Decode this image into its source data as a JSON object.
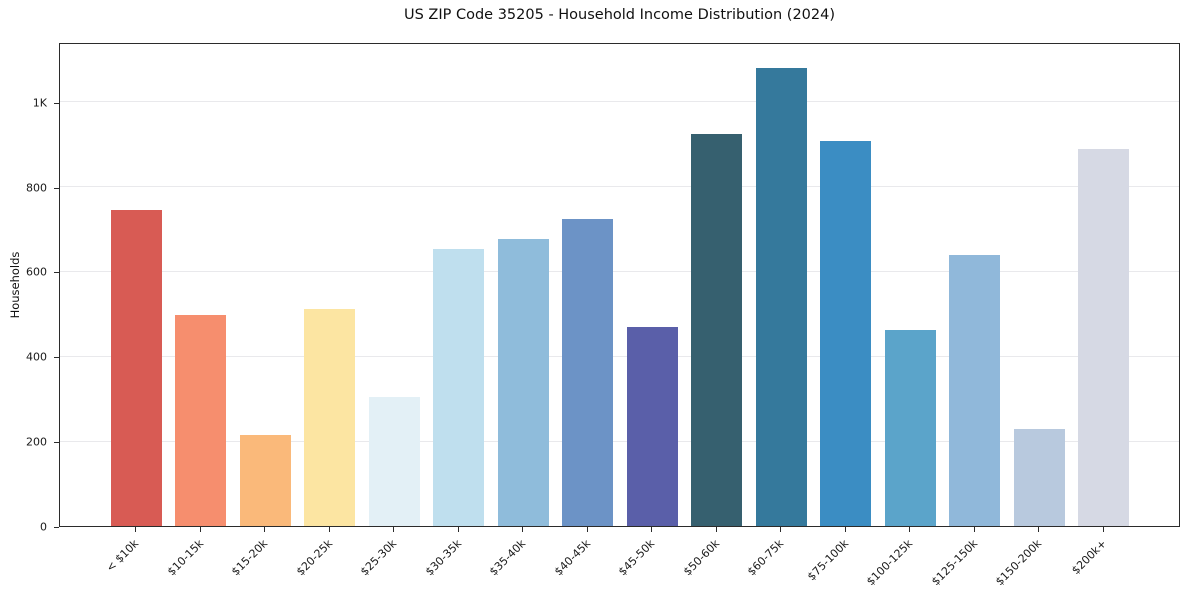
{
  "chart_data": {
    "type": "bar",
    "title": "US ZIP Code 35205 - Household Income Distribution (2024)",
    "xlabel": "",
    "ylabel": "Households",
    "categories": [
      "< $10k",
      "$10-15k",
      "$15-20k",
      "$20-25k",
      "$25-30k",
      "$30-35k",
      "$35-40k",
      "$40-45k",
      "$45-50k",
      "$50-60k",
      "$60-75k",
      "$75-100k",
      "$100-125k",
      "$125-150k",
      "$150-200k",
      "$200k+"
    ],
    "values": [
      746,
      497,
      214,
      511,
      304,
      654,
      676,
      723,
      469,
      923,
      1080,
      908,
      462,
      640,
      229,
      888
    ],
    "bar_colors": [
      "#d85b54",
      "#f68e6e",
      "#fab97a",
      "#fce5a2",
      "#e3f0f6",
      "#bfdfee",
      "#8fbcdb",
      "#6c93c6",
      "#5a5fa9",
      "#36606f",
      "#35799c",
      "#3b8dc3",
      "#5ba4ca",
      "#90b8da",
      "#b8c9de",
      "#d6d9e4"
    ],
    "ylim": [
      0,
      1141
    ],
    "yticks": [
      {
        "value": 0,
        "label": "0"
      },
      {
        "value": 200,
        "label": "200"
      },
      {
        "value": 400,
        "label": "400"
      },
      {
        "value": 600,
        "label": "600"
      },
      {
        "value": 800,
        "label": "800"
      },
      {
        "value": 1000,
        "label": "1K"
      }
    ],
    "grid": "horizontal",
    "legend": "none",
    "colors": {
      "background": "#ffffff",
      "gridline": "#e9e9ec",
      "spine": "#2b2b2b",
      "text": "#111111"
    }
  }
}
